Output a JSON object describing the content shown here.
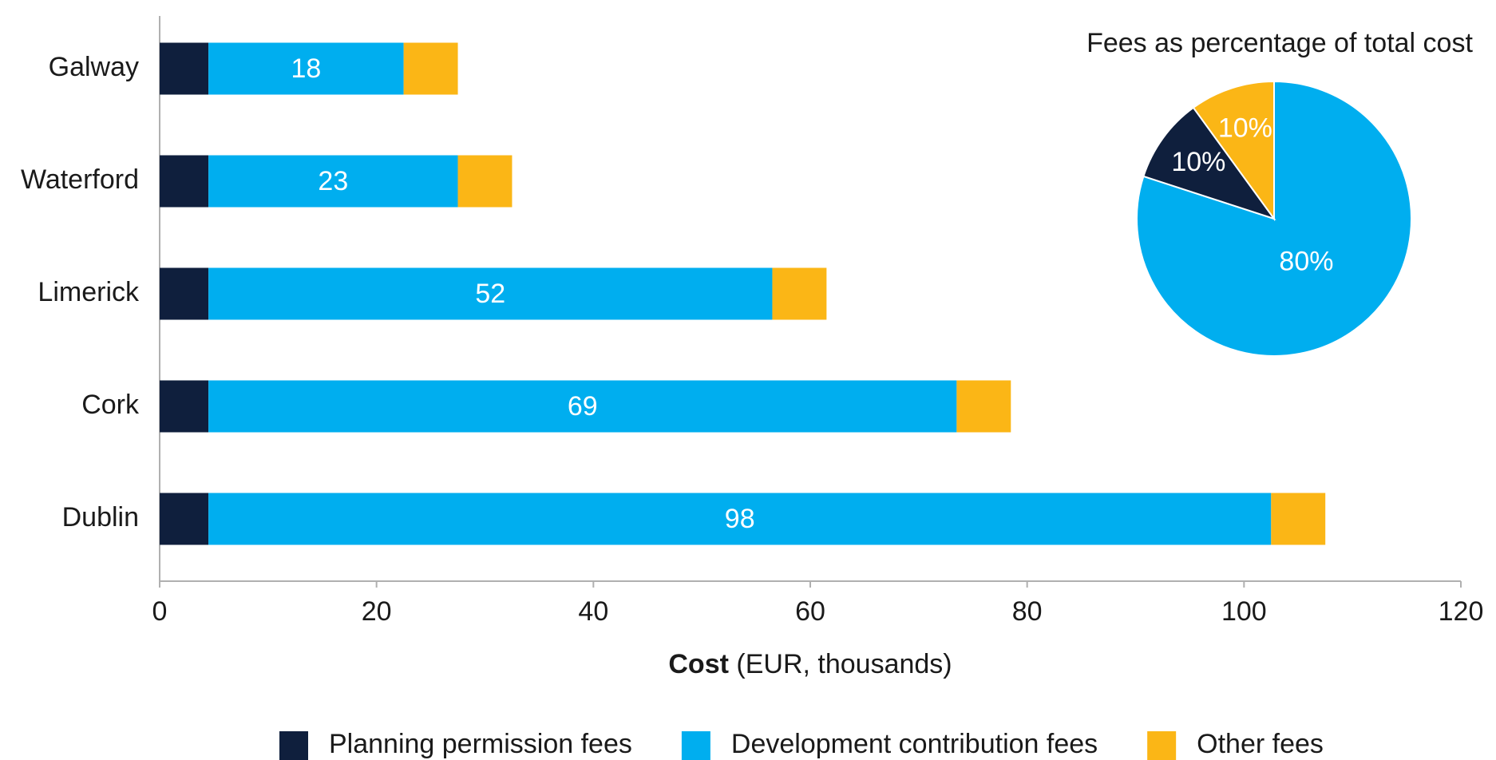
{
  "chart_data": [
    {
      "type": "stacked-barh",
      "categories": [
        "Galway",
        "Waterford",
        "Limerick",
        "Cork",
        "Dublin"
      ],
      "series": [
        {
          "name": "Planning permission fees",
          "color": "#0f1f3d",
          "values": [
            4.5,
            4.5,
            4.5,
            4.5,
            4.5
          ]
        },
        {
          "name": "Development contribution fees",
          "color": "#00aeef",
          "values": [
            18,
            23,
            52,
            69,
            98
          ],
          "show_labels": true
        },
        {
          "name": "Other fees",
          "color": "#fbb616",
          "values": [
            5,
            5,
            5,
            5,
            5
          ]
        }
      ],
      "xlim": [
        0,
        120
      ],
      "xticks": [
        0,
        20,
        40,
        60,
        80,
        100,
        120
      ],
      "x_label": "Cost",
      "x_label_unit": "(EUR, thousands)",
      "legend": "bottom"
    },
    {
      "type": "pie",
      "title": "Fees as percentage of total cost",
      "values": [
        80,
        10,
        10
      ],
      "value_labels": [
        "80%",
        "10%",
        "10%"
      ],
      "colors": [
        "#00aeef",
        "#0f1f3d",
        "#fbb616"
      ]
    }
  ]
}
